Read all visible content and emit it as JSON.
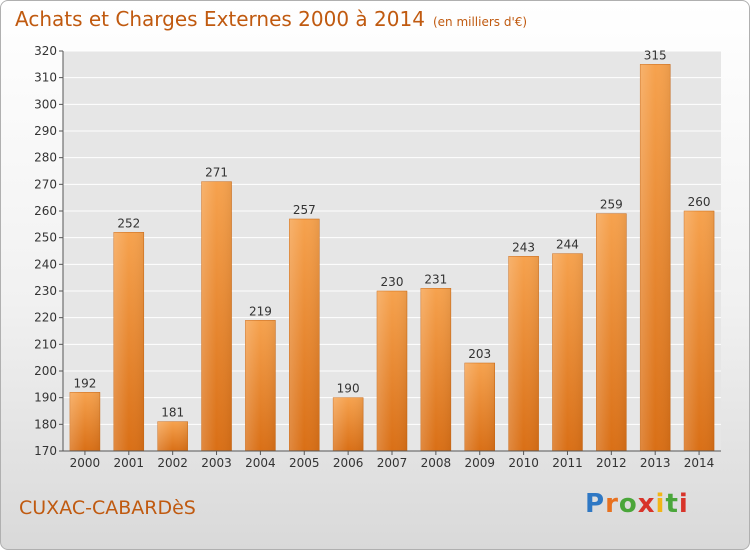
{
  "header": {
    "title": "Achats et Charges Externes 2000 à 2014",
    "unit": "(en milliers d'€)"
  },
  "footer": {
    "place": "CUXAC-CABARDèS",
    "logo": [
      "P",
      "r",
      "o",
      "x",
      "i",
      "t",
      "i"
    ]
  },
  "chart_data": {
    "type": "bar",
    "title": "Achats et Charges Externes 2000 à 2014",
    "categories": [
      "2000",
      "2001",
      "2002",
      "2003",
      "2004",
      "2005",
      "2006",
      "2007",
      "2008",
      "2009",
      "2010",
      "2011",
      "2012",
      "2013",
      "2014"
    ],
    "values": [
      192,
      252,
      181,
      271,
      219,
      257,
      190,
      230,
      231,
      203,
      243,
      244,
      259,
      315,
      260
    ],
    "ylim": [
      170,
      320
    ],
    "yticks": [
      170,
      180,
      190,
      200,
      210,
      220,
      230,
      240,
      250,
      260,
      270,
      280,
      290,
      300,
      310,
      320
    ],
    "grid": true,
    "bar_color": "#e8852c",
    "xlabel": "",
    "ylabel": ""
  }
}
